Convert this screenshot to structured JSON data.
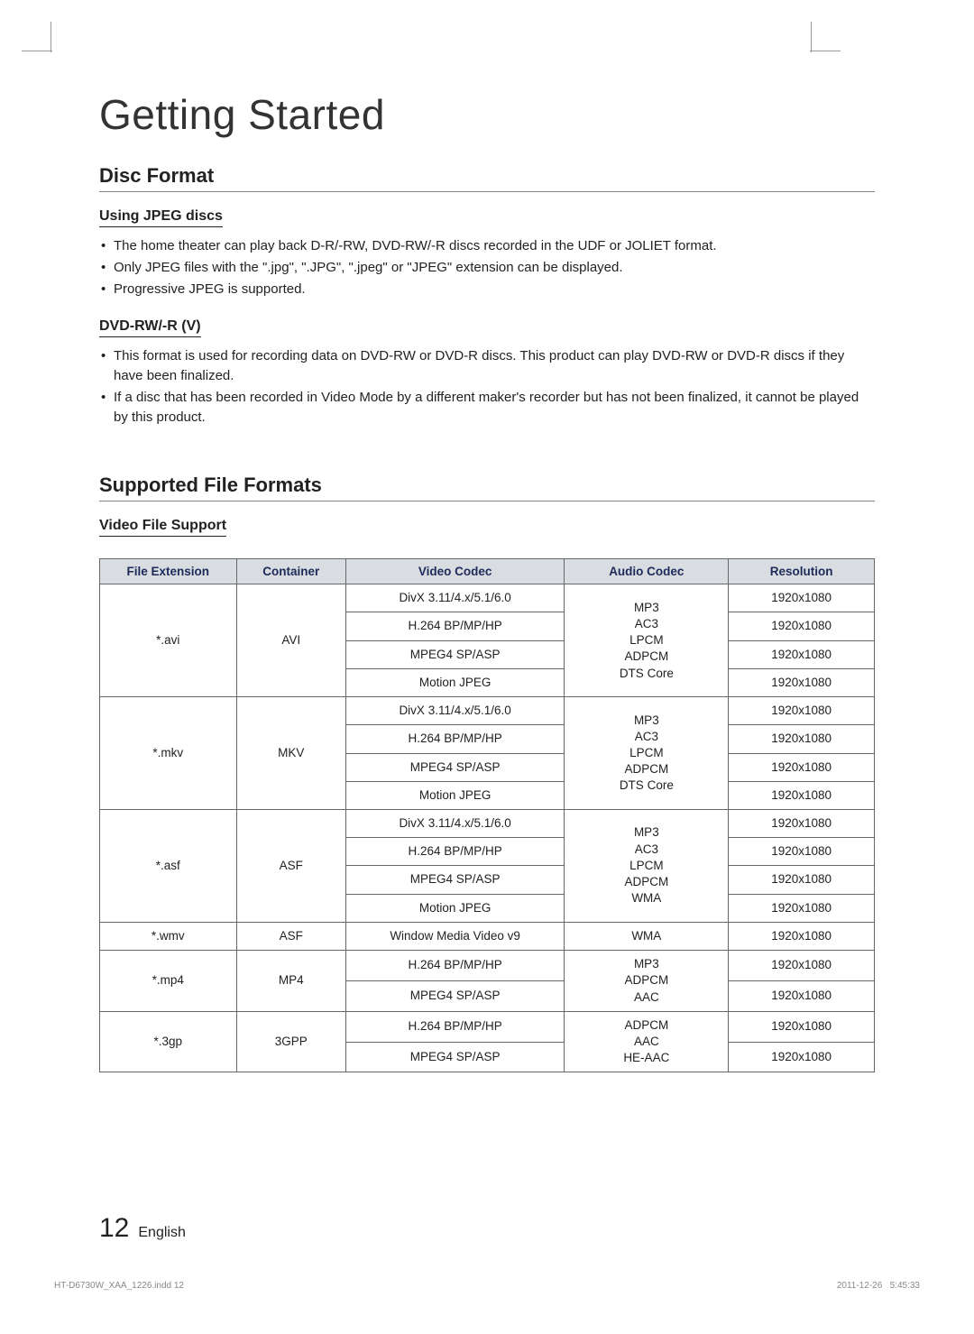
{
  "chapter_title": "Getting Started",
  "disc_format": {
    "title": "Disc Format",
    "jpeg": {
      "heading": "Using JPEG discs",
      "bullets": [
        "The home theater can play back D-R/-RW, DVD-RW/-R discs recorded in the UDF or JOLIET format.",
        "Only JPEG files with the \".jpg\", \".JPG\", \".jpeg\" or \"JPEG\" extension can be displayed.",
        "Progressive JPEG is supported."
      ]
    },
    "dvdrw": {
      "heading": "DVD-RW/-R (V)",
      "bullets": [
        "This format is used for recording data on DVD-RW or DVD-R discs. This product can play DVD-RW or DVD-R discs if they have been finalized.",
        "If a disc that has been recorded in Video Mode by a different maker's recorder but has not been finalized, it cannot be played by this product."
      ]
    }
  },
  "supported": {
    "title": "Supported File Formats",
    "video_support_heading": "Video File Support",
    "columns": [
      "File Extension",
      "Container",
      "Video Codec",
      "Audio Codec",
      "Resolution"
    ],
    "col_widths": [
      "15%",
      "12%",
      "24%",
      "18%",
      "16%"
    ],
    "header_bg": "#d9dce0",
    "header_color": "#1e2a5a",
    "border_color": "#666666",
    "groups": [
      {
        "ext": "*.avi",
        "container": "AVI",
        "audio": "MP3\nAC3\nLPCM\nADPCM\nDTS Core",
        "rows": [
          {
            "vcodec": "DivX 3.11/4.x/5.1/6.0",
            "res": "1920x1080"
          },
          {
            "vcodec": "H.264 BP/MP/HP",
            "res": "1920x1080"
          },
          {
            "vcodec": "MPEG4 SP/ASP",
            "res": "1920x1080"
          },
          {
            "vcodec": "Motion JPEG",
            "res": "1920x1080"
          }
        ]
      },
      {
        "ext": "*.mkv",
        "container": "MKV",
        "audio": "MP3\nAC3\nLPCM\nADPCM\nDTS Core",
        "rows": [
          {
            "vcodec": "DivX 3.11/4.x/5.1/6.0",
            "res": "1920x1080"
          },
          {
            "vcodec": "H.264 BP/MP/HP",
            "res": "1920x1080"
          },
          {
            "vcodec": "MPEG4 SP/ASP",
            "res": "1920x1080"
          },
          {
            "vcodec": "Motion JPEG",
            "res": "1920x1080"
          }
        ]
      },
      {
        "ext": "*.asf",
        "container": "ASF",
        "audio": "MP3\nAC3\nLPCM\nADPCM\nWMA",
        "rows": [
          {
            "vcodec": "DivX 3.11/4.x/5.1/6.0",
            "res": "1920x1080"
          },
          {
            "vcodec": "H.264 BP/MP/HP",
            "res": "1920x1080"
          },
          {
            "vcodec": "MPEG4 SP/ASP",
            "res": "1920x1080"
          },
          {
            "vcodec": "Motion JPEG",
            "res": "1920x1080"
          }
        ]
      },
      {
        "ext": "*.wmv",
        "container": "ASF",
        "audio": "WMA",
        "rows": [
          {
            "vcodec": "Window Media Video v9",
            "res": "1920x1080"
          }
        ]
      },
      {
        "ext": "*.mp4",
        "container": "MP4",
        "audio": "MP3\nADPCM\nAAC",
        "rows": [
          {
            "vcodec": "H.264 BP/MP/HP",
            "res": "1920x1080"
          },
          {
            "vcodec": "MPEG4 SP/ASP",
            "res": "1920x1080"
          }
        ]
      },
      {
        "ext": "*.3gp",
        "container": "3GPP",
        "audio": "ADPCM\nAAC\nHE-AAC",
        "rows": [
          {
            "vcodec": "H.264 BP/MP/HP",
            "res": "1920x1080"
          },
          {
            "vcodec": "MPEG4 SP/ASP",
            "res": "1920x1080"
          }
        ]
      }
    ]
  },
  "footer": {
    "page_number": "12",
    "language": "English",
    "print_file": "HT-D6730W_XAA_1226.indd   12",
    "print_date": "2011-12-26",
    "print_time": "5:45:33"
  }
}
